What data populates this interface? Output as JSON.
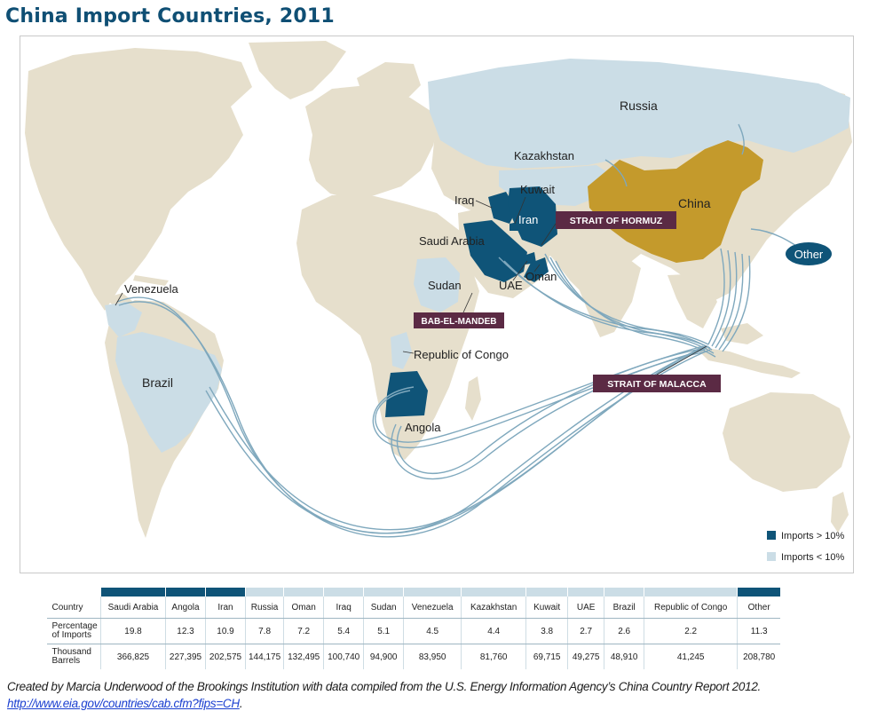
{
  "title": "China Import Countries, 2011",
  "colors": {
    "ocean": "#ffffff",
    "land": "#e6dfcc",
    "imports_gt_10": "#0f5478",
    "imports_lt_10": "#cbdde6",
    "china": "#c49a2c",
    "route": "#7fa8bd",
    "strait_label": "#5b2a44"
  },
  "map": {
    "country_labels": {
      "russia": "Russia",
      "kazakhstan": "Kazakhstan",
      "china": "China",
      "iraq": "Iraq",
      "kuwait": "Kuwait",
      "iran": "Iran",
      "saudi_arabia": "Saudi Arabia",
      "uae": "UAE",
      "oman": "Oman",
      "sudan": "Sudan",
      "venezuela": "Venezuela",
      "brazil": "Brazil",
      "republic_of_congo": "Republic of Congo",
      "angola": "Angola",
      "other": "Other"
    },
    "straits": {
      "hormuz": "STRAIT OF HORMUZ",
      "bab_el_mandeb": "BAB-EL-MANDEB",
      "malacca": "STRAIT OF MALACCA"
    },
    "legend": [
      {
        "label": "Imports > 10%",
        "color": "#0f5478"
      },
      {
        "label": "Imports < 10%",
        "color": "#cbdde6"
      }
    ]
  },
  "table": {
    "row_labels": {
      "country": "Country",
      "percentage_1": "Percentage",
      "percentage_2": "of Imports",
      "barrels_1": "Thousand",
      "barrels_2": "Barrels"
    },
    "columns": [
      {
        "country": "Saudi Arabia",
        "percentage": "19.8",
        "barrels": "366,825",
        "band": "high"
      },
      {
        "country": "Angola",
        "percentage": "12.3",
        "barrels": "227,395",
        "band": "high"
      },
      {
        "country": "Iran",
        "percentage": "10.9",
        "barrels": "202,575",
        "band": "high"
      },
      {
        "country": "Russia",
        "percentage": "7.8",
        "barrels": "144,175",
        "band": "low"
      },
      {
        "country": "Oman",
        "percentage": "7.2",
        "barrels": "132,495",
        "band": "low"
      },
      {
        "country": "Iraq",
        "percentage": "5.4",
        "barrels": "100,740",
        "band": "low"
      },
      {
        "country": "Sudan",
        "percentage": "5.1",
        "barrels": "94,900",
        "band": "low"
      },
      {
        "country": "Venezuela",
        "percentage": "4.5",
        "barrels": "83,950",
        "band": "low"
      },
      {
        "country": "Kazakhstan",
        "percentage": "4.4",
        "barrels": "81,760",
        "band": "low"
      },
      {
        "country": "Kuwait",
        "percentage": "3.8",
        "barrels": "69,715",
        "band": "low"
      },
      {
        "country": "UAE",
        "percentage": "2.7",
        "barrels": "49,275",
        "band": "low"
      },
      {
        "country": "Brazil",
        "percentage": "2.6",
        "barrels": "48,910",
        "band": "low"
      },
      {
        "country": "Republic of Congo",
        "percentage": "2.2",
        "barrels": "41,245",
        "band": "low"
      },
      {
        "country": "Other",
        "percentage": "11.3",
        "barrels": "208,780",
        "band": "high"
      }
    ]
  },
  "caption": {
    "text": "Created by Marcia Underwood of the Brookings Institution with data compiled from the U.S. Energy Information Agency’s China Country Report 2012. ",
    "link": "http://www.eia.gov/countries/cab.cfm?fips=CH",
    "end": "."
  }
}
